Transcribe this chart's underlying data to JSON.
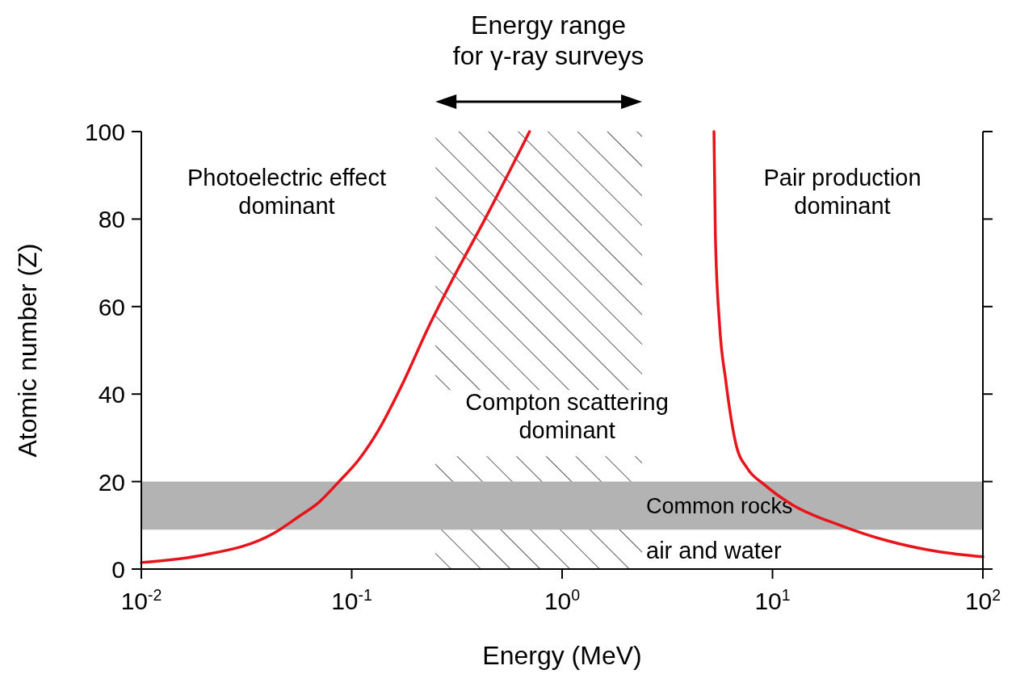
{
  "chart_data": {
    "type": "line",
    "xlabel": "Energy (MeV)",
    "ylabel": "Atomic number (Z)",
    "log": "x",
    "xlim": [
      0.01,
      100
    ],
    "ylim": [
      0,
      100
    ],
    "xticks": [
      {
        "value": 0.01,
        "label": "10$^{-2}$"
      },
      {
        "value": 0.1,
        "label": "10$^{-1}$"
      },
      {
        "value": 1,
        "label": "10$^{0}$"
      },
      {
        "value": 10,
        "label": "10$^{1}$"
      },
      {
        "value": 100,
        "label": "10$^{2}$"
      }
    ],
    "yticks": [
      0,
      20,
      40,
      60,
      80,
      100
    ],
    "grid": false,
    "marker": "none",
    "line_style": "solid",
    "series": [
      {
        "color": "#e8141c",
        "x": [
          0.01,
          0.0186,
          0.043,
          0.056,
          0.07,
          0.087,
          0.108,
          0.135,
          0.177,
          0.23,
          0.3,
          0.43,
          0.7
        ],
        "values": [
          1.5,
          3,
          8.3,
          12,
          15.3,
          20,
          25,
          32,
          43,
          55,
          66,
          80,
          100
        ]
      },
      {
        "color": "#e8141c",
        "x": [
          5.27,
          5.35,
          5.6,
          6.0,
          6.7,
          7.6,
          9.1,
          12.3,
          21,
          35,
          61,
          100
        ],
        "values": [
          100,
          76.6,
          56,
          43,
          28.6,
          23,
          19.4,
          14.8,
          10,
          6.5,
          4,
          2.8
        ]
      }
    ],
    "bands": [
      {
        "axis": "x",
        "from": 0.25,
        "to": 2.4,
        "label": "Compton scattering\ndominant",
        "color": "#333333"
      },
      {
        "axis": "y",
        "from": 9,
        "to": 20,
        "label": "Common rocks",
        "color": "#b3b3b3"
      }
    ],
    "annotations": [
      "Energy range\nfor  γ-ray surveys",
      "Photoelectric effect\ndominant",
      "Pair production\ndominant",
      "air and water"
    ]
  }
}
